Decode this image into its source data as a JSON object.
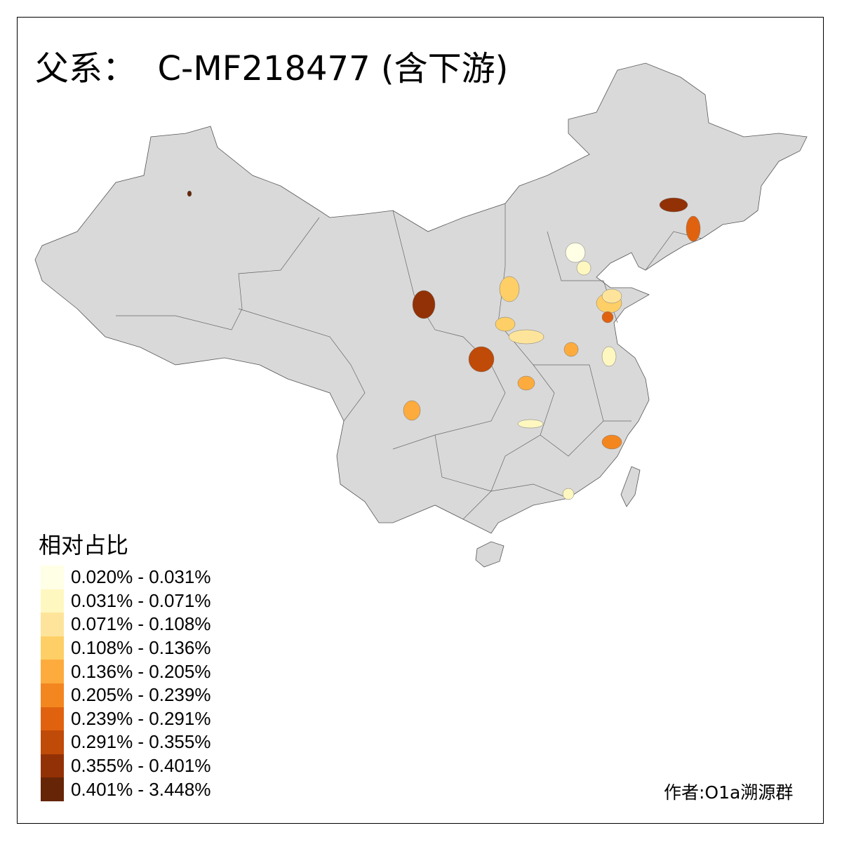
{
  "title": "父系：  C-MF218477 (含下游)",
  "legend": {
    "title": "相对占比",
    "classes": [
      {
        "label": "0.020% - 0.031%",
        "color": "#FFFFE5"
      },
      {
        "label": "0.031% - 0.071%",
        "color": "#FFF7C0"
      },
      {
        "label": "0.071% - 0.108%",
        "color": "#FEE49A"
      },
      {
        "label": "0.108% - 0.136%",
        "color": "#FECF66"
      },
      {
        "label": "0.136% - 0.205%",
        "color": "#FDAB3D"
      },
      {
        "label": "0.205% - 0.239%",
        "color": "#F3861F"
      },
      {
        "label": "0.239% - 0.291%",
        "color": "#E0620F"
      },
      {
        "label": "0.291% - 0.355%",
        "color": "#C04A07"
      },
      {
        "label": "0.355% - 0.401%",
        "color": "#923106"
      },
      {
        "label": "0.401% - 3.448%",
        "color": "#662506"
      }
    ]
  },
  "base_color": "#D9D9D9",
  "regions_classes": [
    9,
    8,
    6,
    0,
    1,
    3,
    3,
    2,
    1,
    3,
    6,
    8,
    4,
    7,
    2,
    4,
    1,
    5,
    4,
    1
  ],
  "credit": "作者:O1a溯源群"
}
